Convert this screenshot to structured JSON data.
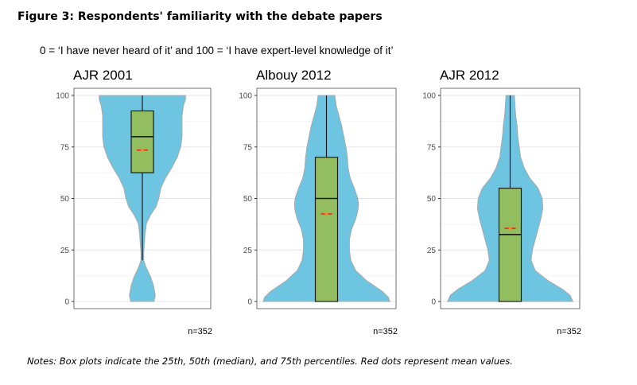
{
  "figure": {
    "title": "Figure 3: Respondents' familiarity with the debate papers",
    "subtitle": "0 = ‘I have never heard of it’ and 100 = ‘I have expert-level knowledge of it’",
    "note": "Notes: Box plots indicate the 25th, 50th (median), and 75th percentiles. Red dots represent mean values."
  },
  "colors": {
    "violin_fill": "#6EC5E2",
    "violin_stroke": "#A9A9A9",
    "box_fill": "#93BE5F",
    "mean_color": "#E8291C",
    "grid": "#E6E6E6",
    "panel_border": "#4D4D4D"
  },
  "chart_data": [
    {
      "type": "violin-box",
      "title": "AJR 2001",
      "ylim": [
        0,
        100
      ],
      "yticks": [
        0,
        25,
        50,
        75,
        100
      ],
      "n_label": "n=352",
      "box": {
        "whisker_low": 20,
        "q1": 62.5,
        "median": 80,
        "q3": 92.5,
        "whisker_high": 100
      },
      "mean": 73.5,
      "density_profile": [
        [
          0,
          0.17
        ],
        [
          3,
          0.19
        ],
        [
          8,
          0.16
        ],
        [
          12,
          0.12
        ],
        [
          17,
          0.05
        ],
        [
          20,
          0.02
        ],
        [
          24,
          0.02
        ],
        [
          28,
          0.03
        ],
        [
          33,
          0.04
        ],
        [
          38,
          0.06
        ],
        [
          42,
          0.12
        ],
        [
          46,
          0.2
        ],
        [
          50,
          0.24
        ],
        [
          55,
          0.27
        ],
        [
          60,
          0.34
        ],
        [
          65,
          0.43
        ],
        [
          70,
          0.51
        ],
        [
          75,
          0.56
        ],
        [
          80,
          0.58
        ],
        [
          85,
          0.58
        ],
        [
          90,
          0.58
        ],
        [
          95,
          0.6
        ],
        [
          98,
          0.63
        ],
        [
          100,
          0.63
        ]
      ]
    },
    {
      "type": "violin-box",
      "title": "Albouy 2012",
      "ylim": [
        0,
        100
      ],
      "yticks": [
        0,
        25,
        50,
        75,
        100
      ],
      "n_label": "n=352",
      "box": {
        "whisker_low": 0,
        "q1": 0,
        "median": 50,
        "q3": 70,
        "whisker_high": 100
      },
      "mean": 42.5,
      "density_profile": [
        [
          0,
          0.91
        ],
        [
          2,
          0.89
        ],
        [
          5,
          0.8
        ],
        [
          10,
          0.58
        ],
        [
          15,
          0.42
        ],
        [
          20,
          0.35
        ],
        [
          25,
          0.33
        ],
        [
          30,
          0.33
        ],
        [
          35,
          0.36
        ],
        [
          40,
          0.42
        ],
        [
          44,
          0.45
        ],
        [
          47,
          0.46
        ],
        [
          50,
          0.45
        ],
        [
          55,
          0.4
        ],
        [
          60,
          0.34
        ],
        [
          65,
          0.31
        ],
        [
          70,
          0.3
        ],
        [
          75,
          0.28
        ],
        [
          80,
          0.25
        ],
        [
          85,
          0.22
        ],
        [
          90,
          0.18
        ],
        [
          95,
          0.14
        ],
        [
          100,
          0.12
        ]
      ]
    },
    {
      "type": "violin-box",
      "title": "AJR 2012",
      "ylim": [
        0,
        100
      ],
      "yticks": [
        0,
        25,
        50,
        75,
        100
      ],
      "n_label": "n=352",
      "box": {
        "whisker_low": 0,
        "q1": 0,
        "median": 32.5,
        "q3": 55,
        "whisker_high": 100
      },
      "mean": 35.5,
      "density_profile": [
        [
          0,
          0.9
        ],
        [
          3,
          0.86
        ],
        [
          6,
          0.75
        ],
        [
          10,
          0.55
        ],
        [
          15,
          0.36
        ],
        [
          20,
          0.3
        ],
        [
          25,
          0.32
        ],
        [
          30,
          0.36
        ],
        [
          35,
          0.4
        ],
        [
          40,
          0.44
        ],
        [
          45,
          0.47
        ],
        [
          50,
          0.46
        ],
        [
          55,
          0.4
        ],
        [
          60,
          0.28
        ],
        [
          65,
          0.2
        ],
        [
          70,
          0.15
        ],
        [
          75,
          0.13
        ],
        [
          80,
          0.11
        ],
        [
          85,
          0.1
        ],
        [
          90,
          0.08
        ],
        [
          95,
          0.07
        ],
        [
          100,
          0.06
        ]
      ]
    }
  ]
}
